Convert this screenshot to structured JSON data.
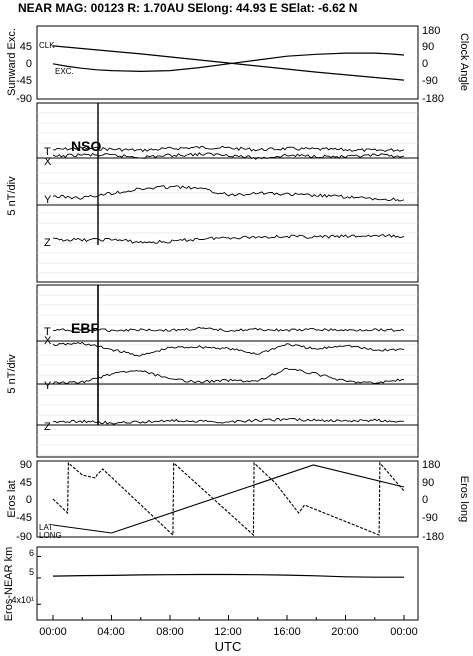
{
  "header": {
    "title": "NEAR MAG: 00123  R: 1.70AU  SElong:   44.93 E  SElat:   -6.62 N"
  },
  "x_axis": {
    "label": "UTC",
    "tick_labels": [
      "00:00",
      "04:00",
      "08:00",
      "12:00",
      "16:00",
      "20:00",
      "00:00"
    ],
    "range_hours": [
      0,
      24
    ]
  },
  "colors": {
    "ink": "#000000",
    "grid": "#d9d9d9"
  },
  "chart_data": [
    {
      "type": "line",
      "id": "sunward-clock",
      "ylabel_left": "Sunward Exc.",
      "ylabel_right": "Clock Angle",
      "left_ticks": [
        "45",
        "0",
        "-45",
        "-90"
      ],
      "right_ticks": [
        "180",
        "90",
        "0",
        "-90",
        "-180"
      ],
      "ylim_left": [
        -90,
        90
      ],
      "ylim_right": [
        -180,
        180
      ],
      "annotations": [
        "CLK",
        "EXC."
      ],
      "series": [
        {
          "name": "CLK",
          "axis": "right",
          "x": [
            0,
            6,
            12,
            18,
            24
          ],
          "y": [
            90,
            48,
            0,
            -48,
            -90
          ]
        },
        {
          "name": "EXC.",
          "axis": "left",
          "x": [
            0,
            1,
            2,
            3,
            4,
            6,
            8,
            10,
            12,
            14,
            16,
            18,
            20,
            22,
            23,
            24
          ],
          "y": [
            -2,
            -9,
            -14,
            -18,
            -20,
            -22,
            -20,
            -12,
            -2,
            8,
            18,
            23,
            26,
            26,
            24,
            21
          ]
        }
      ]
    },
    {
      "type": "line",
      "id": "nso",
      "panel_label": "NSO",
      "ylabel": "5 nT/div",
      "trace_labels": [
        "T",
        "X",
        "Y",
        "Z"
      ],
      "series": [
        {
          "name": "T",
          "x": [
            0,
            2,
            4,
            6,
            8,
            10,
            12,
            14,
            16,
            18,
            20,
            22,
            24
          ],
          "y": [
            0.2,
            0.5,
            0.3,
            0.1,
            0.4,
            0.6,
            0.5,
            0.2,
            0.4,
            0.3,
            0.2,
            0.1,
            0.2
          ]
        },
        {
          "name": "X",
          "x": [
            0,
            2,
            4,
            6,
            8,
            10,
            12,
            14,
            16,
            18,
            20,
            22,
            24
          ],
          "y": [
            -0.1,
            0.2,
            0.1,
            -0.2,
            0.1,
            0.3,
            0.2,
            -0.4,
            0.1,
            0.0,
            -0.2,
            0.1,
            0.0
          ]
        },
        {
          "name": "Y",
          "x": [
            0,
            2,
            4,
            6,
            8,
            10,
            12,
            14,
            16,
            18,
            20,
            22,
            24
          ],
          "y": [
            0.3,
            0.0,
            0.8,
            1.5,
            1.9,
            1.6,
            0.5,
            0.9,
            0.6,
            0.4,
            0.2,
            -0.2,
            -0.3
          ]
        },
        {
          "name": "Z",
          "x": [
            0,
            2,
            4,
            6,
            8,
            10,
            12,
            14,
            16,
            18,
            20,
            22,
            24
          ],
          "y": [
            0.1,
            0.0,
            0.1,
            -0.4,
            -0.3,
            0.2,
            0.4,
            0.5,
            0.6,
            0.5,
            0.6,
            0.7,
            0.6
          ]
        }
      ]
    },
    {
      "type": "line",
      "id": "ebf",
      "panel_label": "EBF",
      "ylabel": "5 nT/div",
      "trace_labels": [
        "T",
        "X",
        "Y",
        "Z"
      ],
      "series": [
        {
          "name": "T",
          "x": [
            0,
            2,
            4,
            6,
            8,
            10,
            12,
            14,
            16,
            18,
            20,
            22,
            24
          ],
          "y": [
            0.4,
            0.5,
            0.4,
            0.5,
            0.4,
            0.6,
            0.4,
            0.5,
            0.4,
            0.5,
            0.4,
            0.5,
            0.4
          ]
        },
        {
          "name": "X",
          "x": [
            0,
            2,
            4,
            6,
            8,
            10,
            12,
            14,
            16,
            18,
            20,
            22,
            24
          ],
          "y": [
            0.0,
            0.2,
            -0.5,
            -1.2,
            -0.3,
            -0.2,
            -0.4,
            -1.0,
            0.1,
            -0.5,
            0.0,
            -0.6,
            -0.5
          ]
        },
        {
          "name": "Y",
          "x": [
            0,
            2,
            4,
            6,
            8,
            10,
            12,
            14,
            16,
            18,
            20,
            22,
            24
          ],
          "y": [
            0.0,
            0.1,
            1.0,
            1.4,
            0.4,
            0.1,
            0.3,
            0.2,
            1.6,
            1.0,
            0.2,
            0.0,
            0.4
          ]
        },
        {
          "name": "Z",
          "x": [
            0,
            2,
            4,
            6,
            8,
            10,
            12,
            14,
            16,
            18,
            20,
            22,
            24
          ],
          "y": [
            0.1,
            0.2,
            0.0,
            0.1,
            0.3,
            0.2,
            0.1,
            0.3,
            0.4,
            0.3,
            0.2,
            0.3,
            0.2
          ]
        }
      ]
    },
    {
      "type": "line",
      "id": "eros-lat-long",
      "ylabel_left": "Eros lat",
      "ylabel_right": "Eros long",
      "left_ticks": [
        "90",
        "45",
        "0",
        "-45",
        "-90"
      ],
      "right_ticks": [
        "180",
        "90",
        "0",
        "-90",
        "-180"
      ],
      "ylim_left": [
        -90,
        90
      ],
      "ylim_right": [
        -180,
        180
      ],
      "annotations": [
        "LAT",
        "LONG"
      ],
      "series": [
        {
          "name": "LAT",
          "axis": "left",
          "x": [
            0,
            4,
            17.8,
            24
          ],
          "y": [
            -65,
            -85,
            85,
            30
          ]
        },
        {
          "name": "LONG",
          "axis": "right",
          "x": [
            0,
            1.0,
            1.05,
            2.0,
            2.9,
            3.0,
            3.4,
            8.2,
            8.25,
            13.7,
            13.75,
            15.2,
            16.8,
            17.2,
            22.3,
            22.35,
            24
          ],
          "y": [
            0,
            -70,
            180,
            120,
            105,
            120,
            150,
            -180,
            180,
            -180,
            180,
            80,
            -70,
            -30,
            -180,
            180,
            40
          ]
        }
      ]
    },
    {
      "type": "line",
      "id": "eros-near-distance",
      "ylabel": "Eros-NEAR km",
      "yscale": "log",
      "left_ticks": [
        "6",
        "5",
        "4x10¹"
      ],
      "series": [
        {
          "name": "Eros-NEAR km",
          "x": [
            0,
            2,
            4,
            6,
            8,
            10,
            12,
            14,
            16,
            18,
            20,
            22,
            24
          ],
          "y": [
            50.8,
            51.0,
            51.1,
            51.3,
            51.4,
            51.5,
            51.5,
            51.4,
            51.2,
            50.9,
            50.5,
            50.3,
            50.3
          ]
        }
      ]
    }
  ]
}
